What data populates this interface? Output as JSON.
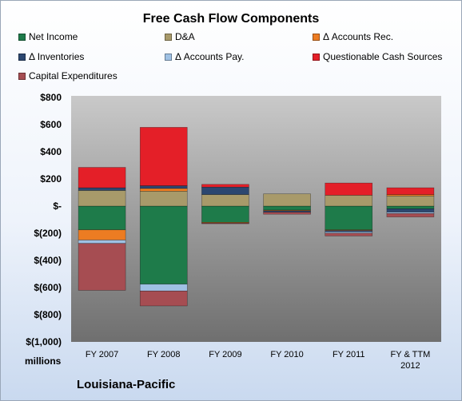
{
  "chart_data": {
    "type": "bar",
    "stacked": true,
    "title": "Free Cash Flow Components",
    "ylabel": "millions",
    "ylim": [
      -1000,
      800
    ],
    "yticks": [
      800,
      600,
      400,
      200,
      0,
      -200,
      -400,
      -600,
      -800,
      -1000
    ],
    "ytick_labels": [
      "$800",
      "$600",
      "$400",
      "$200",
      "$-",
      "$(200)",
      "$(400)",
      "$(600)",
      "$(800)",
      "$(1,000)"
    ],
    "grid": false,
    "legend_position": "top",
    "categories": [
      [
        "FY 2007"
      ],
      [
        "FY 2008"
      ],
      [
        "FY 2009"
      ],
      [
        "FY 2010"
      ],
      [
        "FY 2011"
      ],
      [
        "FY & TTM",
        "2012"
      ]
    ],
    "series": [
      {
        "name": "Net Income",
        "color": "#1e7b4a",
        "values": [
          -175,
          -575,
          -120,
          -30,
          -175,
          -20
        ]
      },
      {
        "name": "D&A",
        "color": "#a89a6a",
        "values": [
          115,
          110,
          85,
          90,
          80,
          75
        ]
      },
      {
        "name": "Δ Accounts Rec.",
        "color": "#ec7c22",
        "values": [
          -75,
          20,
          -5,
          -5,
          -5,
          10
        ]
      },
      {
        "name": "Δ Inventories",
        "color": "#2c4770",
        "values": [
          20,
          20,
          55,
          -10,
          -10,
          -25
        ]
      },
      {
        "name": "Δ Accounts Pay.",
        "color": "#9fc1e4",
        "values": [
          -25,
          -50,
          0,
          0,
          -10,
          -10
        ]
      },
      {
        "name": "Questionable Cash Sources",
        "color": "#e41f28",
        "values": [
          150,
          430,
          20,
          0,
          90,
          50
        ]
      },
      {
        "name": "Capital Expenditures",
        "color": "#a64d52",
        "values": [
          -345,
          -110,
          -5,
          -15,
          -20,
          -25
        ]
      }
    ]
  },
  "footer": {
    "units": "millions",
    "company": "Louisiana-Pacific"
  }
}
